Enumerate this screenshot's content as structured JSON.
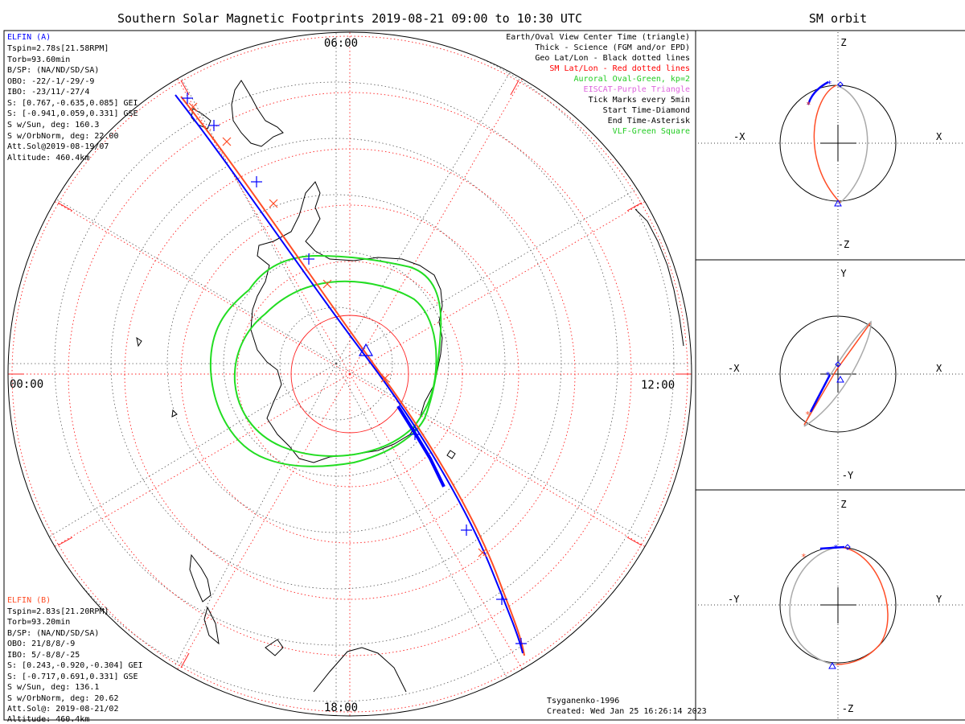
{
  "title": "Southern Solar Magnetic Footprints 2019-08-21 09:00 to 10:30 UTC",
  "orbit_title": "SM orbit",
  "hour_labels": {
    "top": "06:00",
    "left": "00:00",
    "right": "12:00",
    "bottom": "18:00"
  },
  "elfin_a": {
    "name": "ELFIN (A)",
    "color": "#0000ff",
    "lines": [
      "Tspin=2.78s[21.58RPM]",
      "Torb=93.60min",
      "B/SP: (NA/ND/SD/SA)",
      "OBO: -22/-1/-29/-9",
      "IBO: -23/11/-27/4",
      "S: [0.767,-0.635,0.085] GEI",
      "S: [-0.941,0.059,0.331] GSE",
      "S w/Sun, deg: 160.3",
      "S w/OrbNorm, deg: 22.00",
      "Att.Sol@2019-08-19/07",
      "Altitude: 460.4km"
    ]
  },
  "elfin_b": {
    "name": "ELFIN (B)",
    "color": "#ff4d26",
    "lines": [
      "Tspin=2.83s[21.20RPM]",
      "Torb=93.20min",
      "B/SP: (NA/ND/SD/SA)",
      "OBO: 21/8/8/-9",
      "IBO: 5/-8/8/-25",
      "S: [0.243,-0.920,-0.304] GEI",
      "S: [-0.717,0.691,0.331] GSE",
      "S w/Sun, deg: 136.1",
      "S w/OrbNorm, deg: 20.62",
      "Att.Sol@: 2019-08-21/02",
      "Altitude: 460.4km"
    ]
  },
  "legend": [
    {
      "text": "Earth/Oval View Center Time (triangle)",
      "color": "#000000"
    },
    {
      "text": "Thick - Science (FGM and/or EPD)",
      "color": "#000000"
    },
    {
      "text": "Geo Lat/Lon - Black dotted lines",
      "color": "#000000"
    },
    {
      "text": "SM Lat/Lon - Red dotted lines",
      "color": "#ff0000"
    },
    {
      "text": "Auroral Oval-Green, kp=2",
      "color": "#22cc22"
    },
    {
      "text": "EISCAT-Purple Triangle",
      "color": "#dd66dd"
    },
    {
      "text": "Tick Marks every 5min",
      "color": "#000000"
    },
    {
      "text": "Start Time-Diamond",
      "color": "#000000"
    },
    {
      "text": "End Time-Asterisk",
      "color": "#000000"
    },
    {
      "text": "VLF-Green Square",
      "color": "#22cc22"
    }
  ],
  "footer": {
    "model": "Tsyganenko-1996",
    "created": "Created: Wed Jan 25 16:26:14 2023"
  },
  "orbit_panels": [
    {
      "top": "Z",
      "bottom": "-Z",
      "left": "-X",
      "right": "X"
    },
    {
      "top": "Y",
      "bottom": "-Y",
      "left": "-X",
      "right": "X"
    },
    {
      "top": "Z",
      "bottom": "-Z",
      "left": "-Y",
      "right": "Y"
    }
  ]
}
